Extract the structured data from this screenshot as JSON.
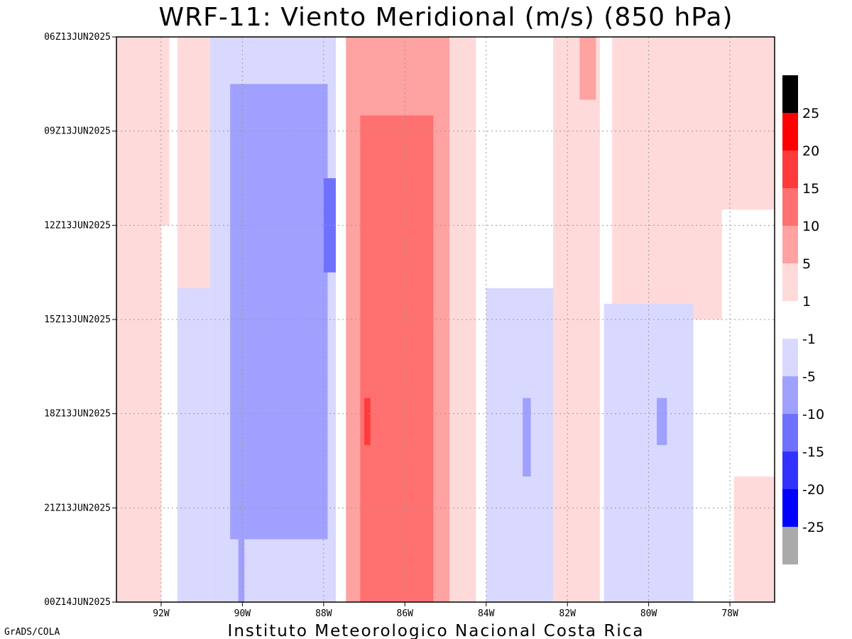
{
  "credit": "GrADS/COLA",
  "footer": "Instituto Meteorologico Nacional Costa Rica",
  "colors": {
    "frame": "#000000",
    "grid": "#9a9a9a"
  },
  "chart_data": {
    "type": "heatmap",
    "title": "WRF-11: Viento Meridional (m/s) (850 hPa)",
    "xlabel": "",
    "ylabel": "",
    "xlim": [
      -93.1,
      -76.9
    ],
    "x_ticks": [
      {
        "value": -92,
        "label": "92W"
      },
      {
        "value": -90,
        "label": "90W"
      },
      {
        "value": -88,
        "label": "88W"
      },
      {
        "value": -86,
        "label": "86W"
      },
      {
        "value": -84,
        "label": "84W"
      },
      {
        "value": -82,
        "label": "82W"
      },
      {
        "value": -80,
        "label": "80W"
      },
      {
        "value": -78,
        "label": "78W"
      }
    ],
    "y_ticks": [
      {
        "value": 0,
        "label": "06Z13JUN2025"
      },
      {
        "value": 3,
        "label": "09Z13JUN2025"
      },
      {
        "value": 6,
        "label": "12Z13JUN2025"
      },
      {
        "value": 9,
        "label": "15Z13JUN2025"
      },
      {
        "value": 12,
        "label": "18Z13JUN2025"
      },
      {
        "value": 15,
        "label": "21Z13JUN2025"
      },
      {
        "value": 18,
        "label": "00Z14JUN2025"
      }
    ],
    "colorbar": {
      "colors": [
        "#aaaaaa",
        "#0000ff",
        "#3232ff",
        "#7070ff",
        "#a0a0ff",
        "#d9d9ff",
        "#ffffff",
        "#ffdada",
        "#ffa2a2",
        "#ff7070",
        "#ff3a3a",
        "#ff0000",
        "#000000"
      ],
      "labels": [
        "-25",
        "-20",
        "-15",
        "-10",
        "-5",
        "-1",
        "1",
        "5",
        "10",
        "15",
        "20",
        "25"
      ]
    },
    "grid": true,
    "regions": [
      {
        "lon_min": -93.1,
        "lon_max": -92.9,
        "level": 1,
        "from_hour": 0,
        "to_hour": 3
      },
      {
        "lon_min": -93.1,
        "lon_max": -91.8,
        "level": 1,
        "from_hour": 0,
        "to_hour": 18
      },
      {
        "lon_min": -92.0,
        "lon_max": -91.5,
        "level": 0,
        "from_hour": 6,
        "to_hour": 18
      },
      {
        "lon_min": -91.6,
        "lon_max": -90.8,
        "level": 1,
        "from_hour": 0,
        "to_hour": 18
      },
      {
        "lon_min": -91.6,
        "lon_max": -90.8,
        "level": -1,
        "from_hour": 8,
        "to_hour": 18
      },
      {
        "lon_min": -90.8,
        "lon_max": -87.5,
        "level": -1,
        "from_hour": 0,
        "to_hour": 18
      },
      {
        "lon_min": -90.3,
        "lon_max": -87.9,
        "level": -5,
        "from_hour": 1.5,
        "to_hour": 16
      },
      {
        "lon_min": -88.0,
        "lon_max": -87.7,
        "level": -10,
        "from_hour": 4.5,
        "to_hour": 7.5
      },
      {
        "lon_min": -90.1,
        "lon_max": -89.95,
        "level": -5,
        "from_hour": 12,
        "to_hour": 18
      },
      {
        "lon_min": -87.7,
        "lon_max": -87.45,
        "level": 0,
        "from_hour": 0,
        "to_hour": 18
      },
      {
        "lon_min": -87.45,
        "lon_max": -84.9,
        "level": 5,
        "from_hour": 0,
        "to_hour": 18
      },
      {
        "lon_min": -87.1,
        "lon_max": -85.3,
        "level": 10,
        "from_hour": 2.5,
        "to_hour": 18
      },
      {
        "lon_min": -87.0,
        "lon_max": -86.85,
        "level": 15,
        "from_hour": 11.5,
        "to_hour": 13
      },
      {
        "lon_min": -84.9,
        "lon_max": -84.25,
        "level": 1,
        "from_hour": 0,
        "to_hour": 18
      },
      {
        "lon_min": -84.25,
        "lon_max": -83.85,
        "level": 0,
        "from_hour": 0,
        "to_hour": 18
      },
      {
        "lon_min": -84.0,
        "lon_max": -82.3,
        "level": -1,
        "from_hour": 8,
        "to_hour": 18
      },
      {
        "lon_min": -83.1,
        "lon_max": -82.9,
        "level": -5,
        "from_hour": 11.5,
        "to_hour": 14
      },
      {
        "lon_min": -82.35,
        "lon_max": -81.2,
        "level": 1,
        "from_hour": 0,
        "to_hour": 18
      },
      {
        "lon_min": -81.7,
        "lon_max": -81.3,
        "level": 5,
        "from_hour": 0,
        "to_hour": 2
      },
      {
        "lon_min": -81.2,
        "lon_max": -80.9,
        "level": 0,
        "from_hour": 0,
        "to_hour": 18
      },
      {
        "lon_min": -80.9,
        "lon_max": -78.2,
        "level": 1,
        "from_hour": 0,
        "to_hour": 9
      },
      {
        "lon_min": -81.1,
        "lon_max": -78.9,
        "level": -1,
        "from_hour": 8.5,
        "to_hour": 18
      },
      {
        "lon_min": -79.8,
        "lon_max": -79.55,
        "level": -5,
        "from_hour": 11.5,
        "to_hour": 13
      },
      {
        "lon_min": -78.9,
        "lon_max": -77.6,
        "level": 0,
        "from_hour": 9,
        "to_hour": 18
      },
      {
        "lon_min": -78.2,
        "lon_max": -76.9,
        "level": 1,
        "from_hour": 0,
        "to_hour": 5.5
      },
      {
        "lon_min": -77.9,
        "lon_max": -76.9,
        "level": 1,
        "from_hour": 14,
        "to_hour": 18
      }
    ]
  }
}
